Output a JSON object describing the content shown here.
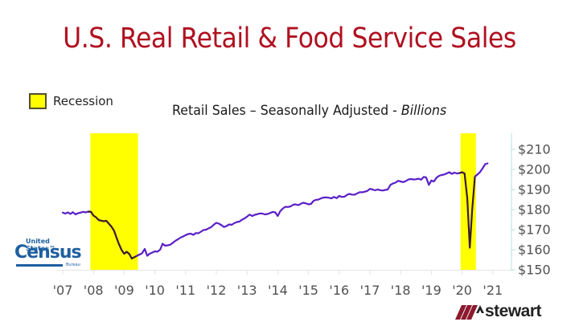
{
  "title": "U.S. Real Retail & Food Service Sales",
  "legend": {
    "label": "Recession",
    "color": "#ffff00"
  },
  "subtitle": {
    "main": "Retail Sales – Seasonally Adjusted - ",
    "italic": "Billions"
  },
  "logos": {
    "census": {
      "top": "United States™",
      "main": "Census",
      "bottom": "Bureau"
    },
    "stewart": {
      "word": "stewart"
    }
  },
  "colors": {
    "title": "#b01020",
    "line": "#5a1fc8",
    "line_in_recession": "#3a1a30",
    "recession": "#ffff00",
    "axis": "#b8e0dc",
    "tick_text": "#505050"
  },
  "chart_data": {
    "type": "line",
    "title": "Retail Sales – Seasonally Adjusted - Billions",
    "xlabel": "",
    "ylabel": "",
    "x_tick_labels": [
      "'07",
      "'08",
      "'09",
      "'10",
      "'11",
      "'12",
      "'13",
      "'14",
      "'15",
      "'16",
      "'17",
      "'18",
      "'19",
      "'20",
      "'21"
    ],
    "x_ticks": [
      2007,
      2008,
      2009,
      2010,
      2011,
      2012,
      2013,
      2014,
      2015,
      2016,
      2017,
      2018,
      2019,
      2020,
      2021
    ],
    "y_tick_labels": [
      "$210",
      "$200",
      "$190",
      "$180",
      "$170",
      "$160",
      "$150"
    ],
    "y_ticks": [
      210,
      200,
      190,
      180,
      170,
      160,
      150
    ],
    "ylim": [
      150,
      215
    ],
    "xlim": [
      2007,
      2021.4
    ],
    "y_axis_position": "right",
    "grid": false,
    "legend_position": "top-left",
    "recession_bands": [
      {
        "label": "Recession",
        "start": 2007.9,
        "end": 2009.45
      },
      {
        "label": "Recession",
        "start": 2019.95,
        "end": 2020.45
      }
    ],
    "series": [
      {
        "name": "Retail Sales (Billions)",
        "points": [
          [
            2007.0,
            178.5
          ],
          [
            2007.08,
            178.0
          ],
          [
            2007.17,
            178.6
          ],
          [
            2007.25,
            177.8
          ],
          [
            2007.33,
            178.7
          ],
          [
            2007.42,
            177.6
          ],
          [
            2007.5,
            178.2
          ],
          [
            2007.58,
            178.5
          ],
          [
            2007.67,
            178.9
          ],
          [
            2007.75,
            178.6
          ],
          [
            2007.83,
            179.0
          ],
          [
            2007.92,
            178.9
          ],
          [
            2008.0,
            177.0
          ],
          [
            2008.08,
            176.2
          ],
          [
            2008.17,
            174.8
          ],
          [
            2008.25,
            174.5
          ],
          [
            2008.33,
            174.2
          ],
          [
            2008.42,
            174.4
          ],
          [
            2008.5,
            173.0
          ],
          [
            2008.58,
            171.6
          ],
          [
            2008.67,
            169.5
          ],
          [
            2008.75,
            166.0
          ],
          [
            2008.83,
            162.8
          ],
          [
            2008.92,
            159.8
          ],
          [
            2009.0,
            158.0
          ],
          [
            2009.08,
            159.0
          ],
          [
            2009.17,
            157.8
          ],
          [
            2009.25,
            155.6
          ],
          [
            2009.33,
            156.3
          ],
          [
            2009.42,
            157.0
          ],
          [
            2009.5,
            157.6
          ],
          [
            2009.58,
            158.2
          ],
          [
            2009.67,
            160.4
          ],
          [
            2009.75,
            157.0
          ],
          [
            2009.83,
            158.0
          ],
          [
            2009.92,
            158.6
          ],
          [
            2010.0,
            159.2
          ],
          [
            2010.08,
            159.0
          ],
          [
            2010.17,
            160.0
          ],
          [
            2010.25,
            163.0
          ],
          [
            2010.33,
            162.0
          ],
          [
            2010.42,
            162.2
          ],
          [
            2010.5,
            162.5
          ],
          [
            2010.58,
            163.4
          ],
          [
            2010.67,
            164.5
          ],
          [
            2010.75,
            165.2
          ],
          [
            2010.83,
            166.0
          ],
          [
            2010.92,
            166.6
          ],
          [
            2011.0,
            167.3
          ],
          [
            2011.08,
            167.8
          ],
          [
            2011.17,
            168.0
          ],
          [
            2011.25,
            167.4
          ],
          [
            2011.33,
            168.3
          ],
          [
            2011.42,
            168.2
          ],
          [
            2011.5,
            169.0
          ],
          [
            2011.58,
            169.8
          ],
          [
            2011.67,
            170.0
          ],
          [
            2011.75,
            170.7
          ],
          [
            2011.83,
            171.2
          ],
          [
            2011.92,
            172.5
          ],
          [
            2012.0,
            173.4
          ],
          [
            2012.08,
            173.0
          ],
          [
            2012.17,
            172.2
          ],
          [
            2012.25,
            171.3
          ],
          [
            2012.33,
            171.8
          ],
          [
            2012.42,
            172.6
          ],
          [
            2012.5,
            172.4
          ],
          [
            2012.58,
            173.2
          ],
          [
            2012.67,
            173.8
          ],
          [
            2012.75,
            174.0
          ],
          [
            2012.83,
            174.9
          ],
          [
            2012.92,
            175.6
          ],
          [
            2013.0,
            176.5
          ],
          [
            2013.08,
            177.5
          ],
          [
            2013.17,
            176.8
          ],
          [
            2013.25,
            177.4
          ],
          [
            2013.33,
            177.7
          ],
          [
            2013.42,
            178.1
          ],
          [
            2013.5,
            178.0
          ],
          [
            2013.58,
            177.6
          ],
          [
            2013.67,
            177.8
          ],
          [
            2013.75,
            178.3
          ],
          [
            2013.83,
            178.8
          ],
          [
            2013.92,
            178.6
          ],
          [
            2014.0,
            176.8
          ],
          [
            2014.08,
            179.2
          ],
          [
            2014.17,
            180.6
          ],
          [
            2014.25,
            181.4
          ],
          [
            2014.33,
            181.3
          ],
          [
            2014.42,
            181.6
          ],
          [
            2014.5,
            182.4
          ],
          [
            2014.58,
            182.6
          ],
          [
            2014.67,
            182.2
          ],
          [
            2014.75,
            182.9
          ],
          [
            2014.83,
            183.4
          ],
          [
            2014.92,
            183.1
          ],
          [
            2015.0,
            182.6
          ],
          [
            2015.08,
            182.8
          ],
          [
            2015.17,
            184.4
          ],
          [
            2015.25,
            184.9
          ],
          [
            2015.33,
            185.0
          ],
          [
            2015.42,
            185.7
          ],
          [
            2015.5,
            186.0
          ],
          [
            2015.58,
            186.1
          ],
          [
            2015.67,
            185.9
          ],
          [
            2015.75,
            185.6
          ],
          [
            2015.83,
            186.3
          ],
          [
            2015.92,
            185.7
          ],
          [
            2016.0,
            186.8
          ],
          [
            2016.08,
            186.3
          ],
          [
            2016.17,
            186.4
          ],
          [
            2016.25,
            187.3
          ],
          [
            2016.33,
            187.8
          ],
          [
            2016.42,
            187.5
          ],
          [
            2016.5,
            187.4
          ],
          [
            2016.58,
            188.0
          ],
          [
            2016.67,
            188.7
          ],
          [
            2016.75,
            188.6
          ],
          [
            2016.83,
            188.9
          ],
          [
            2016.92,
            189.3
          ],
          [
            2017.0,
            190.3
          ],
          [
            2017.08,
            190.0
          ],
          [
            2017.17,
            189.6
          ],
          [
            2017.25,
            190.0
          ],
          [
            2017.33,
            189.7
          ],
          [
            2017.42,
            189.5
          ],
          [
            2017.5,
            189.8
          ],
          [
            2017.58,
            190.0
          ],
          [
            2017.67,
            192.3
          ],
          [
            2017.75,
            193.0
          ],
          [
            2017.83,
            193.4
          ],
          [
            2017.92,
            194.3
          ],
          [
            2018.0,
            194.0
          ],
          [
            2018.08,
            193.7
          ],
          [
            2018.17,
            194.2
          ],
          [
            2018.25,
            195.0
          ],
          [
            2018.33,
            195.2
          ],
          [
            2018.42,
            195.0
          ],
          [
            2018.5,
            195.1
          ],
          [
            2018.58,
            195.4
          ],
          [
            2018.67,
            194.9
          ],
          [
            2018.75,
            196.3
          ],
          [
            2018.83,
            196.0
          ],
          [
            2018.92,
            192.3
          ],
          [
            2019.0,
            194.5
          ],
          [
            2019.08,
            194.0
          ],
          [
            2019.17,
            195.9
          ],
          [
            2019.25,
            196.8
          ],
          [
            2019.33,
            197.2
          ],
          [
            2019.42,
            197.5
          ],
          [
            2019.5,
            198.0
          ],
          [
            2019.58,
            198.6
          ],
          [
            2019.67,
            197.8
          ],
          [
            2019.75,
            198.4
          ],
          [
            2019.83,
            198.0
          ],
          [
            2019.92,
            198.2
          ],
          [
            2020.0,
            198.6
          ],
          [
            2020.08,
            198.0
          ],
          [
            2020.17,
            185.5
          ],
          [
            2020.25,
            161.0
          ],
          [
            2020.33,
            180.0
          ],
          [
            2020.42,
            196.5
          ],
          [
            2020.5,
            197.5
          ],
          [
            2020.58,
            198.6
          ],
          [
            2020.67,
            200.6
          ],
          [
            2020.75,
            202.6
          ],
          [
            2020.83,
            203.0
          ]
        ]
      }
    ]
  }
}
